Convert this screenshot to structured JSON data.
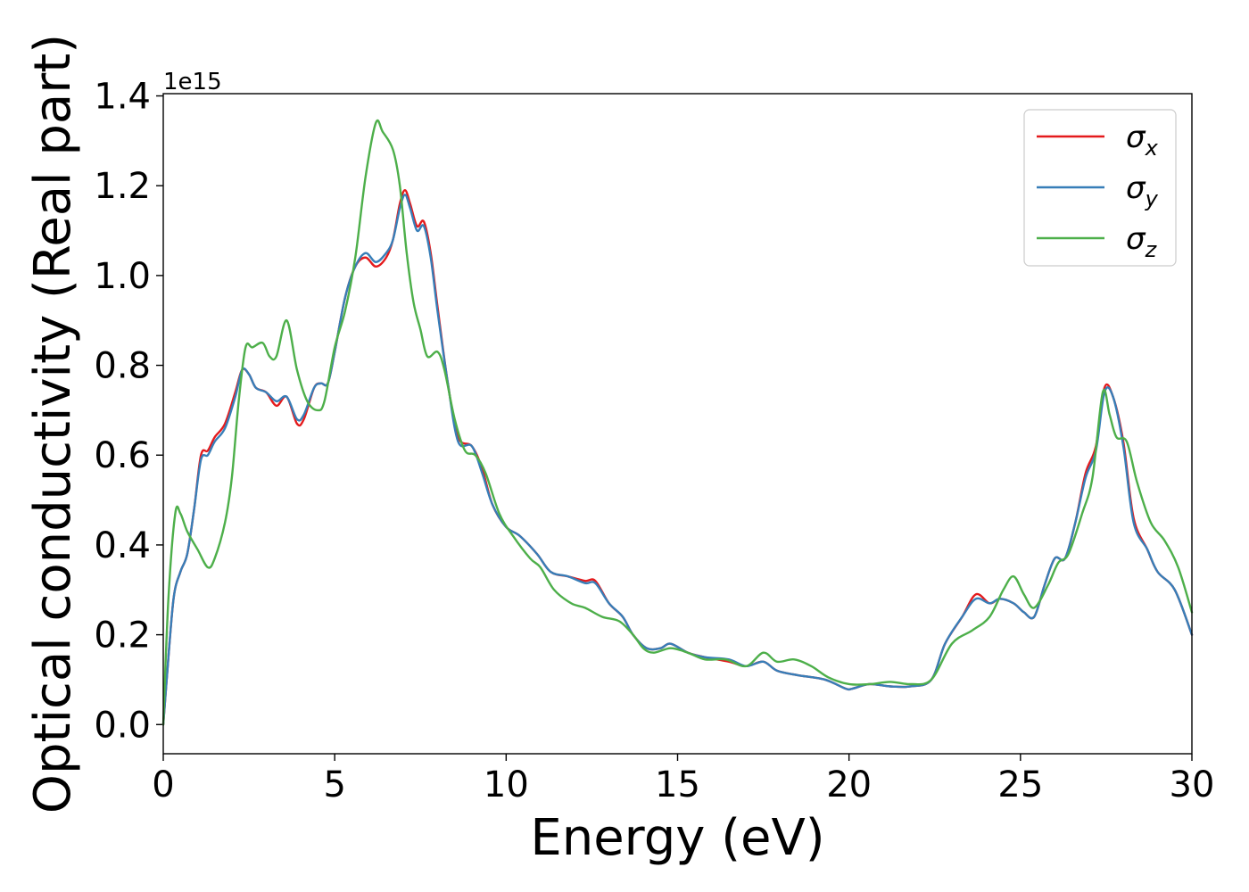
{
  "chart_data": {
    "type": "line",
    "xlabel": "Energy (eV)",
    "ylabel": "Optical conductivity (Real part)",
    "y_offset_label": "1e15",
    "xlim": [
      0,
      30
    ],
    "ylim": [
      -0.065,
      1.405
    ],
    "x_ticks": [
      0,
      5,
      10,
      15,
      20,
      25,
      30
    ],
    "x_tick_labels": [
      "0",
      "5",
      "10",
      "15",
      "20",
      "25",
      "30"
    ],
    "y_ticks": [
      0.0,
      0.2,
      0.4,
      0.6,
      0.8,
      1.0,
      1.2,
      1.4
    ],
    "y_tick_labels": [
      "0.0",
      "0.2",
      "0.4",
      "0.6",
      "0.8",
      "1.0",
      "1.2",
      "1.4"
    ],
    "grid": false,
    "legend_position": "top-right",
    "series": [
      {
        "name": "σx",
        "label_base": "σ",
        "label_sub": "x",
        "color": "#e41a1c",
        "points": [
          [
            0,
            0.0
          ],
          [
            0.1,
            0.1
          ],
          [
            0.3,
            0.28
          ],
          [
            0.5,
            0.34
          ],
          [
            0.7,
            0.38
          ],
          [
            0.9,
            0.48
          ],
          [
            1.1,
            0.6
          ],
          [
            1.3,
            0.61
          ],
          [
            1.5,
            0.64
          ],
          [
            1.8,
            0.67
          ],
          [
            2.1,
            0.74
          ],
          [
            2.3,
            0.79
          ],
          [
            2.5,
            0.78
          ],
          [
            2.7,
            0.75
          ],
          [
            3.0,
            0.74
          ],
          [
            3.3,
            0.71
          ],
          [
            3.6,
            0.73
          ],
          [
            3.9,
            0.67
          ],
          [
            4.1,
            0.68
          ],
          [
            4.4,
            0.75
          ],
          [
            4.6,
            0.76
          ],
          [
            4.8,
            0.76
          ],
          [
            5.0,
            0.83
          ],
          [
            5.3,
            0.95
          ],
          [
            5.6,
            1.02
          ],
          [
            5.9,
            1.04
          ],
          [
            6.2,
            1.02
          ],
          [
            6.5,
            1.04
          ],
          [
            6.7,
            1.08
          ],
          [
            6.9,
            1.16
          ],
          [
            7.05,
            1.19
          ],
          [
            7.2,
            1.16
          ],
          [
            7.4,
            1.11
          ],
          [
            7.6,
            1.12
          ],
          [
            7.8,
            1.05
          ],
          [
            8.0,
            0.93
          ],
          [
            8.3,
            0.76
          ],
          [
            8.6,
            0.64
          ],
          [
            9.0,
            0.62
          ],
          [
            9.3,
            0.57
          ],
          [
            9.6,
            0.49
          ],
          [
            10.0,
            0.44
          ],
          [
            10.4,
            0.42
          ],
          [
            10.9,
            0.38
          ],
          [
            11.3,
            0.34
          ],
          [
            11.8,
            0.33
          ],
          [
            12.3,
            0.32
          ],
          [
            12.6,
            0.32
          ],
          [
            13.0,
            0.27
          ],
          [
            13.4,
            0.24
          ],
          [
            13.7,
            0.2
          ],
          [
            14.1,
            0.17
          ],
          [
            14.5,
            0.17
          ],
          [
            14.8,
            0.18
          ],
          [
            15.3,
            0.16
          ],
          [
            15.8,
            0.15
          ],
          [
            16.5,
            0.14
          ],
          [
            17.0,
            0.13
          ],
          [
            17.5,
            0.14
          ],
          [
            17.9,
            0.12
          ],
          [
            18.5,
            0.11
          ],
          [
            19.3,
            0.1
          ],
          [
            19.9,
            0.08
          ],
          [
            20.1,
            0.08
          ],
          [
            20.6,
            0.09
          ],
          [
            21.2,
            0.085
          ],
          [
            21.8,
            0.085
          ],
          [
            22.4,
            0.1
          ],
          [
            22.8,
            0.18
          ],
          [
            23.3,
            0.24
          ],
          [
            23.7,
            0.29
          ],
          [
            24.1,
            0.27
          ],
          [
            24.4,
            0.28
          ],
          [
            24.8,
            0.27
          ],
          [
            25.1,
            0.25
          ],
          [
            25.4,
            0.24
          ],
          [
            25.7,
            0.31
          ],
          [
            26.0,
            0.37
          ],
          [
            26.3,
            0.37
          ],
          [
            26.6,
            0.45
          ],
          [
            26.9,
            0.56
          ],
          [
            27.2,
            0.62
          ],
          [
            27.45,
            0.75
          ],
          [
            27.7,
            0.73
          ],
          [
            28.0,
            0.63
          ],
          [
            28.3,
            0.46
          ],
          [
            28.7,
            0.39
          ],
          [
            29.0,
            0.34
          ],
          [
            29.5,
            0.3
          ],
          [
            30.0,
            0.2
          ]
        ]
      },
      {
        "name": "σy",
        "label_base": "σ",
        "label_sub": "y",
        "color": "#377eb8",
        "points": [
          [
            0,
            0.0
          ],
          [
            0.1,
            0.1
          ],
          [
            0.3,
            0.28
          ],
          [
            0.5,
            0.34
          ],
          [
            0.7,
            0.38
          ],
          [
            0.9,
            0.48
          ],
          [
            1.1,
            0.59
          ],
          [
            1.3,
            0.6
          ],
          [
            1.5,
            0.63
          ],
          [
            1.8,
            0.66
          ],
          [
            2.1,
            0.73
          ],
          [
            2.3,
            0.79
          ],
          [
            2.5,
            0.78
          ],
          [
            2.7,
            0.75
          ],
          [
            3.0,
            0.74
          ],
          [
            3.3,
            0.72
          ],
          [
            3.6,
            0.73
          ],
          [
            3.9,
            0.68
          ],
          [
            4.1,
            0.69
          ],
          [
            4.4,
            0.75
          ],
          [
            4.6,
            0.76
          ],
          [
            4.8,
            0.76
          ],
          [
            5.0,
            0.83
          ],
          [
            5.3,
            0.95
          ],
          [
            5.6,
            1.02
          ],
          [
            5.9,
            1.05
          ],
          [
            6.2,
            1.03
          ],
          [
            6.5,
            1.05
          ],
          [
            6.7,
            1.08
          ],
          [
            6.9,
            1.15
          ],
          [
            7.05,
            1.18
          ],
          [
            7.2,
            1.15
          ],
          [
            7.4,
            1.1
          ],
          [
            7.6,
            1.11
          ],
          [
            7.8,
            1.04
          ],
          [
            8.0,
            0.92
          ],
          [
            8.3,
            0.76
          ],
          [
            8.6,
            0.63
          ],
          [
            9.0,
            0.62
          ],
          [
            9.3,
            0.56
          ],
          [
            9.6,
            0.49
          ],
          [
            10.0,
            0.44
          ],
          [
            10.4,
            0.42
          ],
          [
            10.9,
            0.38
          ],
          [
            11.3,
            0.34
          ],
          [
            11.8,
            0.33
          ],
          [
            12.3,
            0.315
          ],
          [
            12.6,
            0.315
          ],
          [
            13.0,
            0.27
          ],
          [
            13.4,
            0.24
          ],
          [
            13.7,
            0.2
          ],
          [
            14.1,
            0.17
          ],
          [
            14.5,
            0.17
          ],
          [
            14.8,
            0.18
          ],
          [
            15.3,
            0.16
          ],
          [
            15.8,
            0.15
          ],
          [
            16.5,
            0.145
          ],
          [
            17.0,
            0.13
          ],
          [
            17.5,
            0.14
          ],
          [
            17.9,
            0.12
          ],
          [
            18.5,
            0.11
          ],
          [
            19.3,
            0.1
          ],
          [
            19.9,
            0.08
          ],
          [
            20.1,
            0.08
          ],
          [
            20.6,
            0.09
          ],
          [
            21.2,
            0.085
          ],
          [
            21.8,
            0.085
          ],
          [
            22.4,
            0.1
          ],
          [
            22.8,
            0.18
          ],
          [
            23.3,
            0.24
          ],
          [
            23.7,
            0.28
          ],
          [
            24.1,
            0.27
          ],
          [
            24.4,
            0.28
          ],
          [
            24.8,
            0.27
          ],
          [
            25.1,
            0.25
          ],
          [
            25.4,
            0.24
          ],
          [
            25.7,
            0.31
          ],
          [
            26.0,
            0.37
          ],
          [
            26.3,
            0.37
          ],
          [
            26.6,
            0.45
          ],
          [
            26.9,
            0.55
          ],
          [
            27.2,
            0.61
          ],
          [
            27.45,
            0.74
          ],
          [
            27.7,
            0.73
          ],
          [
            28.0,
            0.62
          ],
          [
            28.3,
            0.45
          ],
          [
            28.7,
            0.39
          ],
          [
            29.0,
            0.34
          ],
          [
            29.5,
            0.3
          ],
          [
            30.0,
            0.2
          ]
        ]
      },
      {
        "name": "σz",
        "label_base": "σ",
        "label_sub": "z",
        "color": "#4daf4a",
        "points": [
          [
            0,
            0.0
          ],
          [
            0.15,
            0.28
          ],
          [
            0.35,
            0.47
          ],
          [
            0.5,
            0.47
          ],
          [
            0.7,
            0.43
          ],
          [
            1.0,
            0.39
          ],
          [
            1.3,
            0.35
          ],
          [
            1.5,
            0.37
          ],
          [
            1.8,
            0.45
          ],
          [
            2.0,
            0.55
          ],
          [
            2.2,
            0.72
          ],
          [
            2.4,
            0.84
          ],
          [
            2.6,
            0.84
          ],
          [
            2.9,
            0.85
          ],
          [
            3.1,
            0.82
          ],
          [
            3.3,
            0.82
          ],
          [
            3.6,
            0.9
          ],
          [
            3.9,
            0.79
          ],
          [
            4.2,
            0.72
          ],
          [
            4.5,
            0.7
          ],
          [
            4.7,
            0.72
          ],
          [
            5.0,
            0.84
          ],
          [
            5.3,
            0.92
          ],
          [
            5.6,
            1.04
          ],
          [
            5.9,
            1.22
          ],
          [
            6.2,
            1.34
          ],
          [
            6.4,
            1.32
          ],
          [
            6.7,
            1.28
          ],
          [
            6.9,
            1.2
          ],
          [
            7.1,
            1.05
          ],
          [
            7.3,
            0.94
          ],
          [
            7.5,
            0.88
          ],
          [
            7.7,
            0.82
          ],
          [
            8.0,
            0.83
          ],
          [
            8.2,
            0.79
          ],
          [
            8.5,
            0.68
          ],
          [
            8.8,
            0.61
          ],
          [
            9.1,
            0.6
          ],
          [
            9.4,
            0.56
          ],
          [
            9.8,
            0.47
          ],
          [
            10.2,
            0.42
          ],
          [
            10.7,
            0.37
          ],
          [
            11.0,
            0.35
          ],
          [
            11.4,
            0.3
          ],
          [
            11.9,
            0.27
          ],
          [
            12.3,
            0.26
          ],
          [
            12.8,
            0.24
          ],
          [
            13.3,
            0.23
          ],
          [
            13.7,
            0.2
          ],
          [
            14.0,
            0.17
          ],
          [
            14.3,
            0.16
          ],
          [
            14.8,
            0.17
          ],
          [
            15.3,
            0.16
          ],
          [
            15.8,
            0.145
          ],
          [
            16.4,
            0.145
          ],
          [
            17.0,
            0.13
          ],
          [
            17.5,
            0.16
          ],
          [
            17.9,
            0.14
          ],
          [
            18.4,
            0.145
          ],
          [
            18.9,
            0.13
          ],
          [
            19.4,
            0.105
          ],
          [
            20.0,
            0.09
          ],
          [
            20.6,
            0.09
          ],
          [
            21.2,
            0.095
          ],
          [
            21.8,
            0.09
          ],
          [
            22.4,
            0.1
          ],
          [
            23.0,
            0.18
          ],
          [
            23.6,
            0.21
          ],
          [
            24.1,
            0.24
          ],
          [
            24.5,
            0.3
          ],
          [
            24.8,
            0.33
          ],
          [
            25.1,
            0.29
          ],
          [
            25.4,
            0.26
          ],
          [
            25.8,
            0.31
          ],
          [
            26.1,
            0.36
          ],
          [
            26.4,
            0.38
          ],
          [
            26.8,
            0.47
          ],
          [
            27.1,
            0.55
          ],
          [
            27.4,
            0.74
          ],
          [
            27.6,
            0.69
          ],
          [
            27.8,
            0.64
          ],
          [
            28.1,
            0.63
          ],
          [
            28.4,
            0.54
          ],
          [
            28.8,
            0.45
          ],
          [
            29.2,
            0.41
          ],
          [
            29.6,
            0.35
          ],
          [
            30.0,
            0.25
          ]
        ]
      }
    ]
  }
}
